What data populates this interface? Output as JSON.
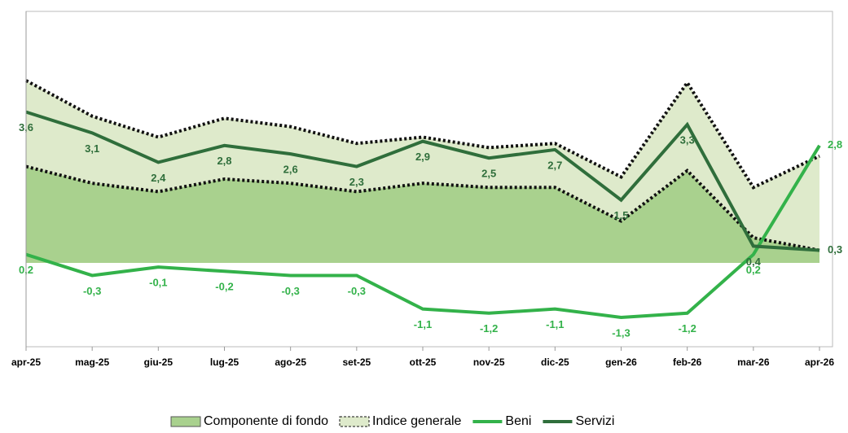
{
  "chart_data": {
    "type": "line",
    "categories": [
      "apr-25",
      "mag-25",
      "giu-25",
      "lug-25",
      "ago-25",
      "set-25",
      "ott-25",
      "nov-25",
      "dic-25",
      "gen-26",
      "feb-26",
      "mar-26",
      "apr-26"
    ],
    "ylim": [
      -2,
      6
    ],
    "series": [
      {
        "name": "Indice generale",
        "kind": "area",
        "color": "#deeacb",
        "values": [
          4.35,
          3.5,
          3.0,
          3.45,
          3.25,
          2.85,
          3.0,
          2.75,
          2.85,
          2.05,
          4.3,
          1.8,
          2.55
        ]
      },
      {
        "name": "Componente di fondo",
        "kind": "area",
        "color": "#a9d18e",
        "values": [
          2.3,
          1.9,
          1.7,
          2.0,
          1.9,
          1.7,
          1.9,
          1.8,
          1.8,
          1.0,
          2.2,
          0.6,
          0.3
        ]
      },
      {
        "name": "Beni",
        "kind": "line",
        "color": "#33b24a",
        "values": [
          0.2,
          -0.3,
          -0.1,
          -0.2,
          -0.3,
          -0.3,
          -1.1,
          -1.2,
          -1.1,
          -1.3,
          -1.2,
          0.2,
          2.8
        ],
        "value_labels": [
          "0,2",
          "-0,3",
          "-0,1",
          "-0,2",
          "-0,3",
          "-0,3",
          "-1,1",
          "-1,2",
          "-1,1",
          "-1,3",
          "-1,2",
          "0,2",
          "2,8"
        ]
      },
      {
        "name": "Servizi",
        "kind": "line",
        "color": "#2f6e3b",
        "values": [
          3.6,
          3.1,
          2.4,
          2.8,
          2.6,
          2.3,
          2.9,
          2.5,
          2.7,
          1.5,
          3.3,
          0.4,
          0.3
        ],
        "value_labels": [
          "3,6",
          "3,1",
          "2,4",
          "2,8",
          "2,6",
          "2,3",
          "2,9",
          "2,5",
          "2,7",
          "1,5",
          "3,3",
          "0,4",
          "0,3"
        ]
      }
    ]
  }
}
